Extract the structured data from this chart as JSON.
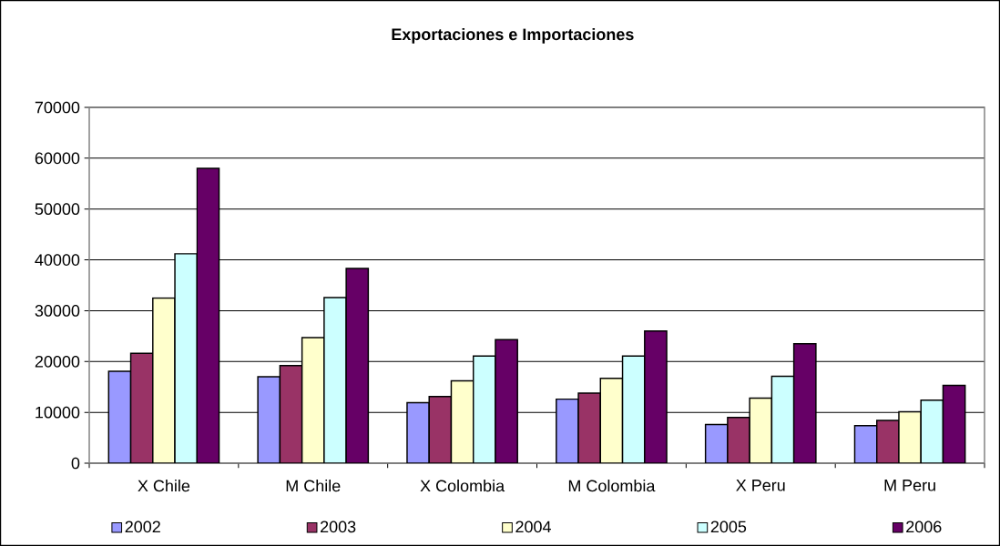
{
  "chart_data": {
    "type": "bar",
    "title": "Exportaciones e Importaciones",
    "categories": [
      "X Chile",
      "M Chile",
      "X Colombia",
      "M Colombia",
      "X Peru",
      "M Peru"
    ],
    "series": [
      {
        "name": "2002",
        "color": "#9999ff",
        "values": [
          18100,
          17000,
          11900,
          12600,
          7600,
          7400
        ]
      },
      {
        "name": "2003",
        "color": "#993366",
        "values": [
          21600,
          19200,
          13100,
          13800,
          9000,
          8400
        ]
      },
      {
        "name": "2004",
        "color": "#ffffcc",
        "values": [
          32500,
          24700,
          16200,
          16700,
          12800,
          10100
        ]
      },
      {
        "name": "2005",
        "color": "#ccffff",
        "values": [
          41200,
          32600,
          21100,
          21100,
          17100,
          12400
        ]
      },
      {
        "name": "2006",
        "color": "#660066",
        "values": [
          58000,
          38300,
          24300,
          26000,
          23500,
          15300
        ]
      }
    ],
    "ylim": [
      0,
      70000
    ],
    "yticks": [
      0,
      10000,
      20000,
      30000,
      40000,
      50000,
      60000,
      70000
    ],
    "grid": "y",
    "legend": "bottom"
  }
}
